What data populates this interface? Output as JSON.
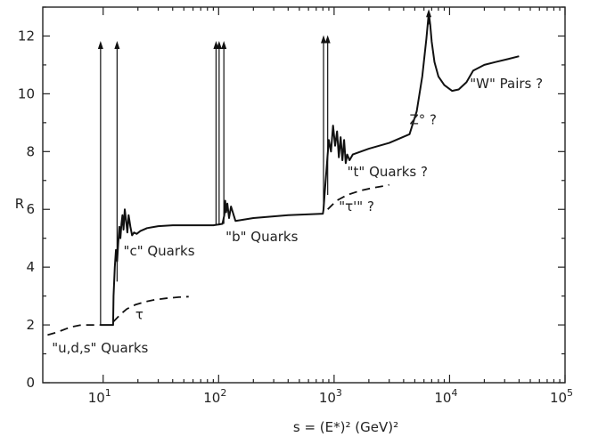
{
  "chart_data": {
    "type": "line",
    "title": "",
    "xlabel": "s = (E*)²   (GeV)²",
    "ylabel": "R",
    "x_scale": "log",
    "xlim": [
      3,
      100000
    ],
    "ylim": [
      0,
      13
    ],
    "x_ticks": [
      {
        "value": 10,
        "base": "10",
        "exp": "1"
      },
      {
        "value": 100,
        "base": "10",
        "exp": "2"
      },
      {
        "value": 1000,
        "base": "10",
        "exp": "3"
      },
      {
        "value": 10000,
        "base": "10",
        "exp": "4"
      },
      {
        "value": 100000,
        "base": "10",
        "exp": "5"
      }
    ],
    "y_ticks": [
      "0",
      "2",
      "4",
      "6",
      "8",
      "10",
      "12"
    ],
    "grid": false,
    "legend": "none",
    "series": [
      {
        "style": "solid",
        "x": [
          9.5,
          12.2,
          12.3,
          12.6,
          12.9,
          13.2,
          13.5,
          13.8,
          14.1,
          14.4,
          14.7,
          15.0,
          15.4,
          15.8,
          16.2,
          16.6,
          17.2,
          17.8,
          18.5,
          19.5,
          21,
          24,
          30,
          40,
          60,
          90,
          108,
          112,
          114,
          116,
          119,
          123,
          128,
          140,
          200,
          400,
          800,
          810,
          830,
          860,
          900,
          940,
          980,
          1020,
          1060,
          1100,
          1140,
          1180,
          1220,
          1260,
          1300,
          1360,
          1450,
          2000,
          3000,
          4500,
          5200,
          5800,
          6300,
          6600,
          6800,
          7000,
          7400,
          8000,
          9000,
          10500,
          12000,
          14000,
          16000,
          20000,
          25000,
          32000,
          40000
        ],
        "y": [
          2.0,
          2.0,
          3.0,
          4.0,
          4.6,
          4.2,
          4.8,
          5.4,
          5.0,
          5.5,
          5.8,
          5.3,
          6.0,
          5.6,
          5.2,
          5.8,
          5.4,
          5.1,
          5.2,
          5.15,
          5.25,
          5.35,
          5.42,
          5.45,
          5.45,
          5.45,
          5.5,
          5.8,
          6.3,
          5.9,
          6.2,
          5.7,
          6.1,
          5.6,
          5.7,
          5.8,
          5.85,
          6.0,
          6.6,
          7.4,
          8.4,
          8.0,
          8.9,
          8.2,
          8.7,
          7.8,
          8.5,
          7.7,
          8.4,
          7.6,
          7.9,
          7.7,
          7.9,
          8.1,
          8.3,
          8.6,
          9.4,
          10.6,
          11.9,
          12.8,
          12.4,
          11.8,
          11.1,
          10.6,
          10.3,
          10.1,
          10.15,
          10.4,
          10.8,
          11.0,
          11.1,
          11.2,
          11.3
        ]
      },
      {
        "style": "dashed",
        "x": [
          3.3,
          4.0,
          4.8,
          5.6,
          6.3,
          7.0,
          8.0,
          9.5
        ],
        "y": [
          1.65,
          1.75,
          1.87,
          1.95,
          1.99,
          2.0,
          2.0,
          2.0
        ]
      },
      {
        "style": "dashed",
        "x": [
          12.2,
          14,
          16,
          19,
          23,
          28,
          35,
          45,
          55
        ],
        "y": [
          2.1,
          2.35,
          2.55,
          2.7,
          2.8,
          2.87,
          2.92,
          2.96,
          2.98
        ]
      },
      {
        "style": "dashed",
        "x": [
          880,
          1050,
          1300,
          1700,
          2200,
          2800,
          3000
        ],
        "y": [
          6.0,
          6.3,
          6.5,
          6.65,
          6.75,
          6.82,
          6.85
        ]
      }
    ],
    "resonance_arrows": [
      {
        "x": 9.5,
        "y_from": 2.0,
        "y_to": 11.8
      },
      {
        "x": 13.2,
        "y_from": 3.5,
        "y_to": 11.8
      },
      {
        "x": 95,
        "y_from": 5.45,
        "y_to": 11.8
      },
      {
        "x": 101,
        "y_from": 5.45,
        "y_to": 11.8
      },
      {
        "x": 111,
        "y_from": 5.5,
        "y_to": 11.8
      },
      {
        "x": 810,
        "y_from": 5.95,
        "y_to": 12.0
      },
      {
        "x": 880,
        "y_from": 6.5,
        "y_to": 12.0
      }
    ],
    "peak_arrow": {
      "x": 6600,
      "y_from": 12.4,
      "y_to": 12.9
    },
    "annotations": [
      {
        "text": "\"u,d,s\" Quarks",
        "x": 3.6,
        "y": 1.05
      },
      {
        "text": "τ",
        "x": 19,
        "y": 2.2
      },
      {
        "text": "\"c\" Quarks",
        "x": 15,
        "y": 4.4
      },
      {
        "text": "\"b\" Quarks",
        "x": 115,
        "y": 4.9
      },
      {
        "text": "\"τ'\" ?",
        "x": 1100,
        "y": 5.95
      },
      {
        "text": "\"t\" Quarks ?",
        "x": 1300,
        "y": 7.15
      },
      {
        "text": "Z° ?",
        "x": 4500,
        "y": 8.95
      },
      {
        "text": "\"W\" Pairs ?",
        "x": 15000,
        "y": 10.2
      }
    ]
  }
}
